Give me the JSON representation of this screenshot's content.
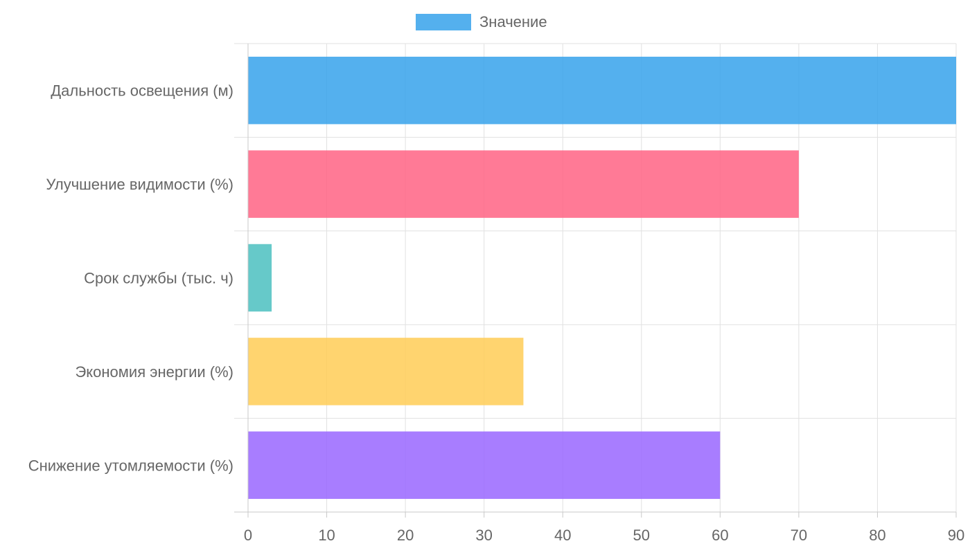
{
  "chart_data": {
    "type": "bar",
    "orientation": "horizontal",
    "categories": [
      "Дальность освещения (м)",
      "Улучшение видимости (%)",
      "Срок службы (тыс. ч)",
      "Экономия энергии (%)",
      "Снижение утомляемости (%)"
    ],
    "series": [
      {
        "name": "Значение",
        "values": [
          90,
          70,
          3,
          35,
          60
        ]
      }
    ],
    "bar_colors": [
      "#36a2eb",
      "#ff6384",
      "#4bc0c0",
      "#ffcd56",
      "#9966ff"
    ],
    "legend_color": "#36a2eb",
    "legend_position": "top",
    "xlim": [
      0,
      90
    ],
    "x_ticks": [
      0,
      10,
      20,
      30,
      40,
      50,
      60,
      70,
      80,
      90
    ],
    "grid": true,
    "title": "",
    "xlabel": "",
    "ylabel": ""
  }
}
